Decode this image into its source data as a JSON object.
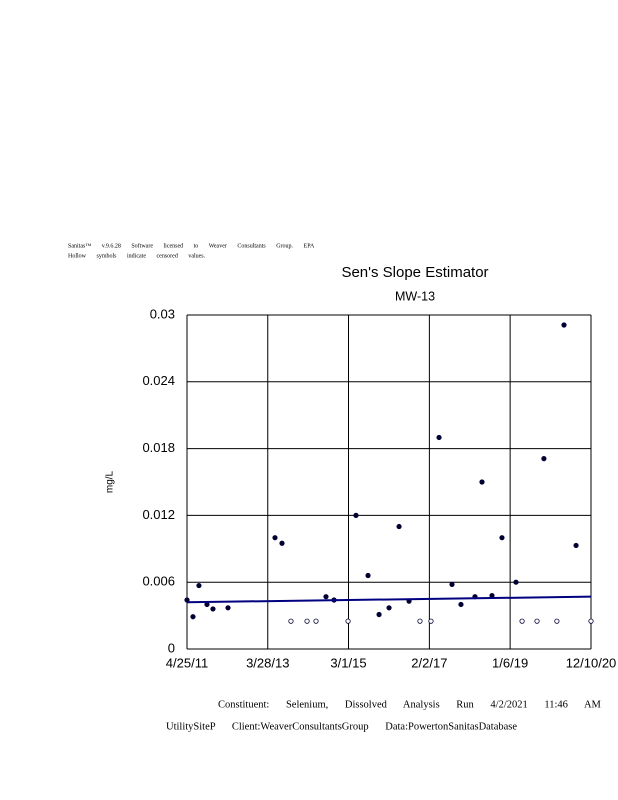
{
  "notes": [
    "Sanitas™ v.9.6.28 Software licensed to Weaver Consultants Group. EPA",
    "Hollow symbols indicate censored values."
  ],
  "footer": [
    "Constituent: Selenium, Dissolved Analysis Run 4/2/2021 11:46 AM",
    "UtilitySiteP Client:WeaverConsultantsGroup Data:PowertonSanitasDatabase"
  ],
  "chart_data": {
    "type": "scatter",
    "title": "Sen's Slope Estimator",
    "subtitle": "MW-13",
    "y_label": "mg/L",
    "xlim": [
      "4/25/11",
      "12/10/20"
    ],
    "xticks": [
      "4/25/11",
      "3/28/13",
      "3/1/15",
      "2/2/17",
      "1/6/19",
      "12/10/20"
    ],
    "ylim": [
      0,
      0.03
    ],
    "yticks": [
      0,
      0.006,
      0.012,
      0.018,
      0.024,
      0.03
    ],
    "grid": true,
    "series": [
      {
        "marker": "filled",
        "color": "#000033",
        "x": [
          "4/25/11",
          "6/16/11",
          "8/7/11",
          "10/16/11",
          "12/7/11",
          "4/16/12",
          "5/30/13",
          "7/30/13",
          "8/17/14",
          "10/26/14",
          "5/5/15",
          "8/18/15",
          "11/22/15",
          "2/17/16",
          "5/14/16",
          "8/9/16",
          "4/27/17",
          "8/18/17",
          "11/4/17",
          "3/6/18",
          "5/6/18",
          "8/1/18",
          "10/27/18",
          "2/26/19",
          "10/27/19",
          "4/19/20",
          "8/2/20"
        ],
        "values": [
          0.0044,
          0.0029,
          0.0057,
          0.004,
          0.0036,
          0.0037,
          0.01,
          0.0095,
          0.0047,
          0.0044,
          0.012,
          0.0066,
          0.0031,
          0.0037,
          0.011,
          0.0043,
          0.019,
          0.0058,
          0.004,
          0.0047,
          0.015,
          0.0048,
          0.01,
          0.006,
          0.0171,
          0.0291,
          0.0093
        ]
      },
      {
        "marker": "hollow",
        "color": "#000033",
        "x": [
          "10/16/13",
          "3/5/14",
          "5/22/14",
          "2/25/15",
          "11/12/16",
          "2/16/17",
          "4/20/19",
          "8/28/19",
          "2/17/20",
          "12/10/20"
        ],
        "values": [
          0.0025,
          0.0025,
          0.0025,
          0.0025,
          0.0025,
          0.0025,
          0.0025,
          0.0025,
          0.0025,
          0.0025
        ]
      }
    ],
    "trend": {
      "color": "#000080",
      "x": [
        "4/25/11",
        "12/10/20"
      ],
      "values": [
        0.0042,
        0.0047
      ]
    }
  }
}
